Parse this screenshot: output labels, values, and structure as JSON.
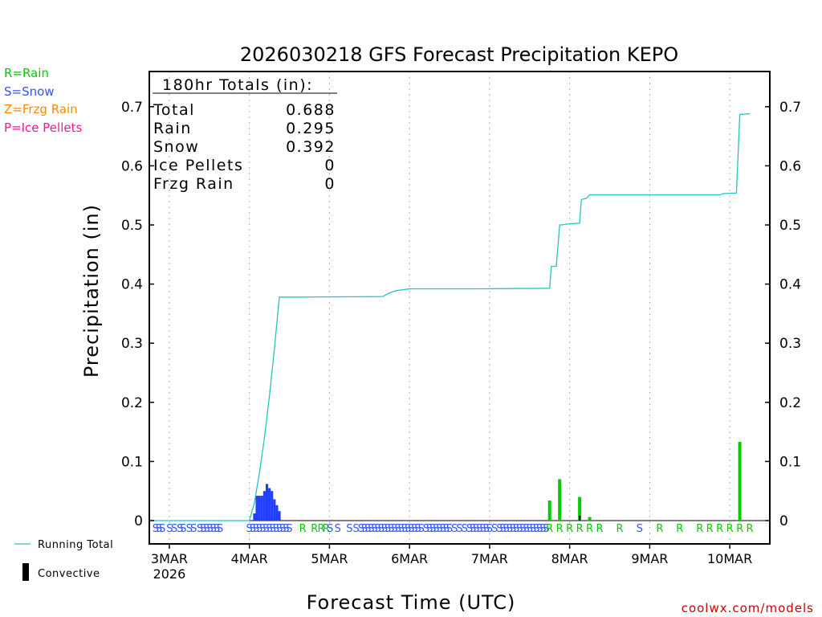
{
  "chart_data": {
    "type": "bar",
    "title": "2026030218 GFS Forecast Precipitation KEPO",
    "xlabel": "Forecast Time (UTC)",
    "ylabel": "Precipitation (in)",
    "ylim": [
      0,
      0.75
    ],
    "yticks": [
      0,
      0.1,
      0.2,
      0.3,
      0.4,
      0.5,
      0.6,
      0.7
    ],
    "ytick_labels": [
      "0",
      "0.1",
      "0.2",
      "0.3",
      "0.4",
      "0.5",
      "0.6",
      "0.7"
    ],
    "x_unit": "hours since 3MAR 00Z",
    "xlim": [
      -6,
      180
    ],
    "xticks": [
      {
        "hour": 0,
        "label": "3MAR",
        "sublabel": "2026"
      },
      {
        "hour": 24,
        "label": "4MAR"
      },
      {
        "hour": 48,
        "label": "5MAR"
      },
      {
        "hour": 72,
        "label": "6MAR"
      },
      {
        "hour": 96,
        "label": "7MAR"
      },
      {
        "hour": 120,
        "label": "8MAR"
      },
      {
        "hour": 144,
        "label": "9MAR"
      },
      {
        "hour": 168,
        "label": "10MAR"
      }
    ],
    "grid": true,
    "legend_precip_types": [
      {
        "label": "R=Rain",
        "color": "#00cc00"
      },
      {
        "label": "S=Snow",
        "color": "#3355ff"
      },
      {
        "label": "Z=Frzg Rain",
        "color": "#ff8800"
      },
      {
        "label": "P=Ice Pellets",
        "color": "#ff1493"
      }
    ],
    "legend_series": [
      {
        "label": "Running Total",
        "color": "#22c4c4"
      },
      {
        "label": "Convective",
        "color": "#000000"
      }
    ],
    "totals_box": {
      "heading": "180hr Totals (in):",
      "rows": [
        {
          "label": "Total",
          "value": "0.688"
        },
        {
          "label": "Rain",
          "value": "0.295"
        },
        {
          "label": "Snow",
          "value": "0.392"
        },
        {
          "label": "Ice Pellets",
          "value": "0"
        },
        {
          "label": "Frzg Rain",
          "value": "0"
        }
      ]
    },
    "snow_bars": [
      {
        "hour": 25.5,
        "value": 0.012
      },
      {
        "hour": 26.25,
        "value": 0.042
      },
      {
        "hour": 27.0,
        "value": 0.042
      },
      {
        "hour": 27.75,
        "value": 0.042
      },
      {
        "hour": 28.5,
        "value": 0.05
      },
      {
        "hour": 29.25,
        "value": 0.062
      },
      {
        "hour": 30.0,
        "value": 0.055
      },
      {
        "hour": 30.75,
        "value": 0.05
      },
      {
        "hour": 31.5,
        "value": 0.036
      },
      {
        "hour": 32.25,
        "value": 0.026
      },
      {
        "hour": 33.0,
        "value": 0.016
      }
    ],
    "rain_bars": [
      {
        "hour": 114,
        "value": 0.034
      },
      {
        "hour": 117,
        "value": 0.07
      },
      {
        "hour": 123,
        "value": 0.04
      },
      {
        "hour": 126,
        "value": 0.006
      },
      {
        "hour": 171,
        "value": 0.133
      }
    ],
    "convective_bars": [
      {
        "hour": 123,
        "value": 0.008
      }
    ],
    "running_total": {
      "hours": [
        -6,
        24,
        24.5,
        25.5,
        27,
        28.5,
        30,
        31.5,
        32.5,
        33,
        40,
        64,
        66,
        68,
        72,
        93,
        114,
        114.5,
        116,
        117,
        117.5,
        120,
        123,
        123.5,
        125,
        126,
        165,
        166,
        170,
        171,
        171.5,
        174
      ],
      "values": [
        0,
        0,
        0.01,
        0.03,
        0.08,
        0.14,
        0.21,
        0.29,
        0.35,
        0.378,
        0.378,
        0.379,
        0.385,
        0.389,
        0.392,
        0.392,
        0.393,
        0.43,
        0.43,
        0.5,
        0.5,
        0.502,
        0.503,
        0.543,
        0.545,
        0.551,
        0.551,
        0.553,
        0.554,
        0.687,
        0.687,
        0.688
      ]
    },
    "precip_type_letters": [
      {
        "hour": -4.1,
        "code": "S"
      },
      {
        "hour": -3.1,
        "code": "S"
      },
      {
        "hour": -2.1,
        "code": "S"
      },
      {
        "hour": 0.1,
        "code": "S"
      },
      {
        "hour": 1.5,
        "code": "S"
      },
      {
        "hour": 3.2,
        "code": "S"
      },
      {
        "hour": 4.2,
        "code": "S"
      },
      {
        "hour": 6.0,
        "code": "S"
      },
      {
        "hour": 7.3,
        "code": "S"
      },
      {
        "hour": 9.2,
        "code": "S"
      },
      {
        "hour": 10.2,
        "code": "S"
      },
      {
        "hour": 11.2,
        "code": "S"
      },
      {
        "hour": 12.2,
        "code": "S"
      },
      {
        "hour": 13.2,
        "code": "S"
      },
      {
        "hour": 14.2,
        "code": "S"
      },
      {
        "hour": 15.2,
        "code": "S"
      },
      {
        "hour": 24.0,
        "code": "S"
      },
      {
        "hour": 25.0,
        "code": "S"
      },
      {
        "hour": 26.0,
        "code": "S"
      },
      {
        "hour": 27.0,
        "code": "S"
      },
      {
        "hour": 28.0,
        "code": "S"
      },
      {
        "hour": 29.0,
        "code": "S"
      },
      {
        "hour": 30.0,
        "code": "S"
      },
      {
        "hour": 31.0,
        "code": "S"
      },
      {
        "hour": 32.0,
        "code": "S"
      },
      {
        "hour": 33.0,
        "code": "S"
      },
      {
        "hour": 34.0,
        "code": "S"
      },
      {
        "hour": 35.0,
        "code": "S"
      },
      {
        "hour": 36.0,
        "code": "S"
      },
      {
        "hour": 40.0,
        "code": "R"
      },
      {
        "hour": 43.5,
        "code": "R"
      },
      {
        "hour": 45.5,
        "code": "R"
      },
      {
        "hour": 47.0,
        "code": "R"
      },
      {
        "hour": 48.2,
        "code": "S"
      },
      {
        "hour": 50.5,
        "code": "S"
      },
      {
        "hour": 54.0,
        "code": "S"
      },
      {
        "hour": 56.0,
        "code": "S"
      },
      {
        "hour": 57.5,
        "code": "S"
      },
      {
        "hour": 58.5,
        "code": "S"
      },
      {
        "hour": 59.5,
        "code": "S"
      },
      {
        "hour": 60.5,
        "code": "S"
      },
      {
        "hour": 61.5,
        "code": "S"
      },
      {
        "hour": 62.5,
        "code": "S"
      },
      {
        "hour": 63.5,
        "code": "S"
      },
      {
        "hour": 64.5,
        "code": "S"
      },
      {
        "hour": 65.5,
        "code": "S"
      },
      {
        "hour": 66.5,
        "code": "S"
      },
      {
        "hour": 67.5,
        "code": "S"
      },
      {
        "hour": 68.5,
        "code": "S"
      },
      {
        "hour": 69.5,
        "code": "S"
      },
      {
        "hour": 70.5,
        "code": "S"
      },
      {
        "hour": 71.5,
        "code": "S"
      },
      {
        "hour": 72.5,
        "code": "S"
      },
      {
        "hour": 73.5,
        "code": "S"
      },
      {
        "hour": 74.5,
        "code": "S"
      },
      {
        "hour": 75.5,
        "code": "S"
      },
      {
        "hour": 77.0,
        "code": "S"
      },
      {
        "hour": 78.0,
        "code": "S"
      },
      {
        "hour": 79.0,
        "code": "S"
      },
      {
        "hour": 80.0,
        "code": "S"
      },
      {
        "hour": 81.0,
        "code": "S"
      },
      {
        "hour": 82.0,
        "code": "S"
      },
      {
        "hour": 83.0,
        "code": "S"
      },
      {
        "hour": 84.0,
        "code": "S"
      },
      {
        "hour": 85.5,
        "code": "S"
      },
      {
        "hour": 87.0,
        "code": "S"
      },
      {
        "hour": 88.5,
        "code": "S"
      },
      {
        "hour": 90.0,
        "code": "S"
      },
      {
        "hour": 91.0,
        "code": "S"
      },
      {
        "hour": 92.0,
        "code": "S"
      },
      {
        "hour": 93.0,
        "code": "S"
      },
      {
        "hour": 94.0,
        "code": "S"
      },
      {
        "hour": 95.0,
        "code": "S"
      },
      {
        "hour": 96.0,
        "code": "S"
      },
      {
        "hour": 97.5,
        "code": "S"
      },
      {
        "hour": 99.0,
        "code": "S"
      },
      {
        "hour": 100.0,
        "code": "S"
      },
      {
        "hour": 101.0,
        "code": "S"
      },
      {
        "hour": 102.0,
        "code": "S"
      },
      {
        "hour": 103.0,
        "code": "S"
      },
      {
        "hour": 104.0,
        "code": "S"
      },
      {
        "hour": 105.0,
        "code": "S"
      },
      {
        "hour": 106.0,
        "code": "S"
      },
      {
        "hour": 107.0,
        "code": "S"
      },
      {
        "hour": 108.0,
        "code": "S"
      },
      {
        "hour": 109.0,
        "code": "S"
      },
      {
        "hour": 110.0,
        "code": "S"
      },
      {
        "hour": 111.0,
        "code": "S"
      },
      {
        "hour": 112.0,
        "code": "S"
      },
      {
        "hour": 113.0,
        "code": "S"
      },
      {
        "hour": 114.0,
        "code": "R"
      },
      {
        "hour": 117.0,
        "code": "R"
      },
      {
        "hour": 120.0,
        "code": "R"
      },
      {
        "hour": 123.0,
        "code": "R"
      },
      {
        "hour": 126.0,
        "code": "R"
      },
      {
        "hour": 129.0,
        "code": "R"
      },
      {
        "hour": 135.0,
        "code": "R"
      },
      {
        "hour": 141.0,
        "code": "S"
      },
      {
        "hour": 147.0,
        "code": "R"
      },
      {
        "hour": 153.0,
        "code": "R"
      },
      {
        "hour": 159.0,
        "code": "R"
      },
      {
        "hour": 162.0,
        "code": "R"
      },
      {
        "hour": 165.0,
        "code": "R"
      },
      {
        "hour": 168.0,
        "code": "R"
      },
      {
        "hour": 171.0,
        "code": "R"
      },
      {
        "hour": 174.0,
        "code": "R"
      }
    ],
    "credit": "coolwx.com/models"
  }
}
